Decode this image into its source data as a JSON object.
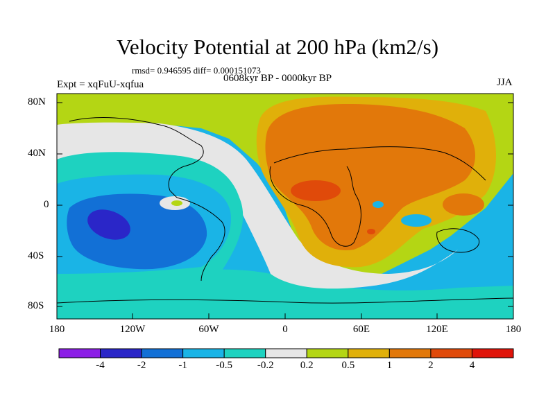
{
  "figure": {
    "title": "Velocity Potential at 200 hPa (km2/s)",
    "stats": "rmsd= 0.946595 diff= 0.000151073",
    "period": "0608kyr BP - 0000kyr BP",
    "experiment": "Expt = xqFuU-xqfua",
    "season": "JJA"
  },
  "axes": {
    "lat_ticks": [
      "80N",
      "40N",
      "0",
      "40S",
      "80S"
    ],
    "lon_ticks": [
      "180",
      "120W",
      "60W",
      "0",
      "60E",
      "120E",
      "180"
    ]
  },
  "colorbar": {
    "labels": [
      "-4",
      "-2",
      "-1",
      "-0.5",
      "-0.2",
      "0.2",
      "0.5",
      "1",
      "2",
      "4"
    ],
    "colors": [
      "#8c1ee6",
      "#2a26c8",
      "#1270d6",
      "#1ab4e6",
      "#1ed2c0",
      "#e6e6e6",
      "#b4d614",
      "#e0b00a",
      "#e2780a",
      "#e04a0a",
      "#e0140a"
    ]
  },
  "palette": {
    "lt_neg05": "#1ab4e6",
    "lt_neg1": "#1270d6",
    "lt_neg2": "#2a26c8",
    "neg02_neg05": "#1ed2c0",
    "neutral": "#e6e6e6",
    "pos02_05": "#b4d614",
    "pos05_1": "#e0b00a",
    "pos1_2": "#e2780a",
    "pos2_4": "#e04a0a"
  }
}
